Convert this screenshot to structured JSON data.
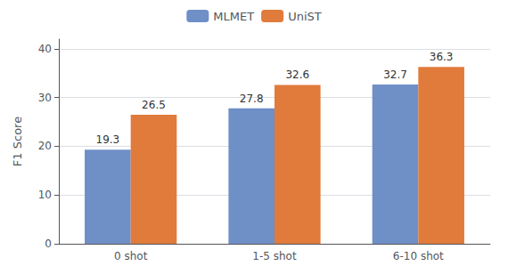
{
  "chart_data": {
    "type": "bar",
    "categories": [
      "0 shot",
      "1-5 shot",
      "6-10 shot"
    ],
    "series": [
      {
        "name": "MLMET",
        "color": "#6F8FC7",
        "values": [
          19.3,
          27.8,
          32.7
        ]
      },
      {
        "name": "UniST",
        "color": "#E07B3C",
        "values": [
          26.5,
          32.6,
          36.3
        ]
      }
    ],
    "ylabel": "F1 Score",
    "ylim": [
      0,
      42
    ],
    "yticks": [
      0,
      10,
      20,
      30,
      40
    ],
    "grid": true,
    "legend": "top",
    "data_labels": true
  }
}
